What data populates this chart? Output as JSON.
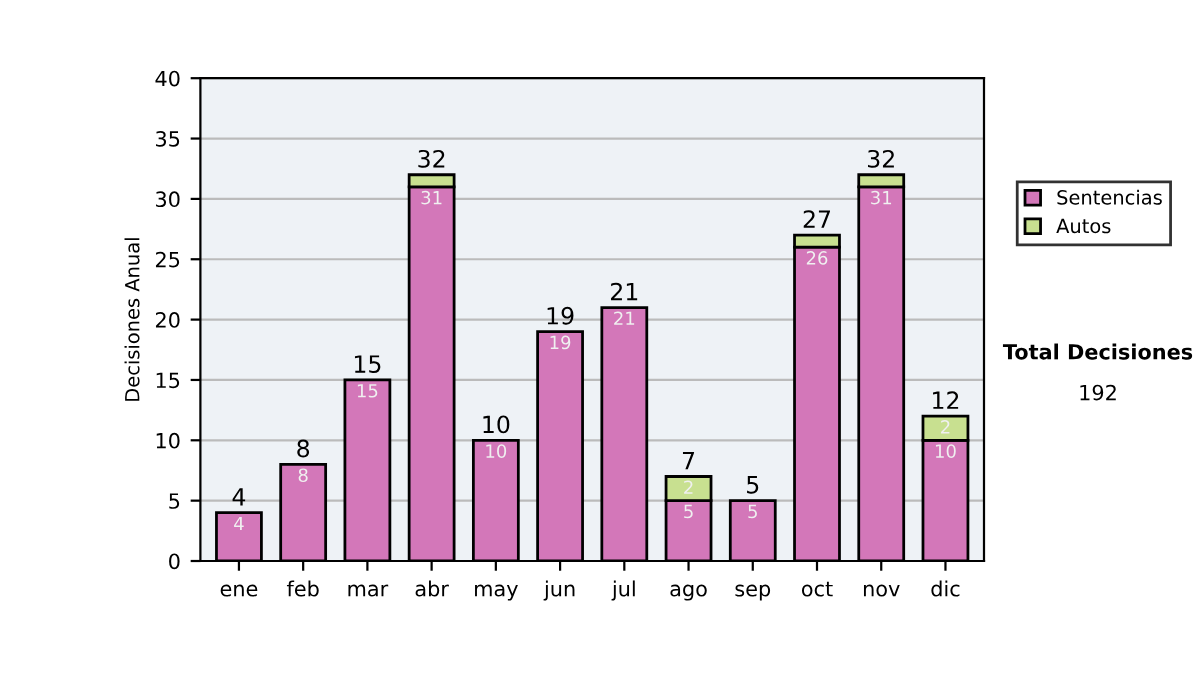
{
  "chart_data": {
    "type": "bar",
    "stacked": true,
    "ylabel": "Decisiones Anual",
    "categories": [
      "ene",
      "feb",
      "mar",
      "abr",
      "may",
      "jun",
      "jul",
      "ago",
      "sep",
      "oct",
      "nov",
      "dic"
    ],
    "series": [
      {
        "name": "Sentencias",
        "color": "#d377b9",
        "values": [
          4,
          8,
          15,
          31,
          10,
          19,
          21,
          5,
          5,
          26,
          31,
          10
        ],
        "value_labels": [
          "4",
          "8",
          "15",
          "31",
          "10",
          "19",
          "21",
          "5",
          "5",
          "26",
          "31",
          "10"
        ]
      },
      {
        "name": "Autos",
        "color": "#c8e090",
        "values": [
          0,
          0,
          0,
          1,
          0,
          0,
          0,
          2,
          0,
          1,
          1,
          2
        ],
        "value_labels": [
          null,
          null,
          null,
          null,
          null,
          null,
          null,
          "2",
          null,
          null,
          null,
          "2"
        ]
      }
    ],
    "totals": [
      "4",
      "8",
      "15",
      "32",
      "10",
      "19",
      "21",
      "7",
      "5",
      "27",
      "32",
      "12"
    ],
    "ylim": [
      0,
      40
    ],
    "yticks": [
      0,
      5,
      10,
      15,
      20,
      25,
      30,
      35,
      40
    ],
    "grid": "y",
    "legend": "right",
    "annotations": [
      "Total Decisiones",
      "192"
    ]
  }
}
